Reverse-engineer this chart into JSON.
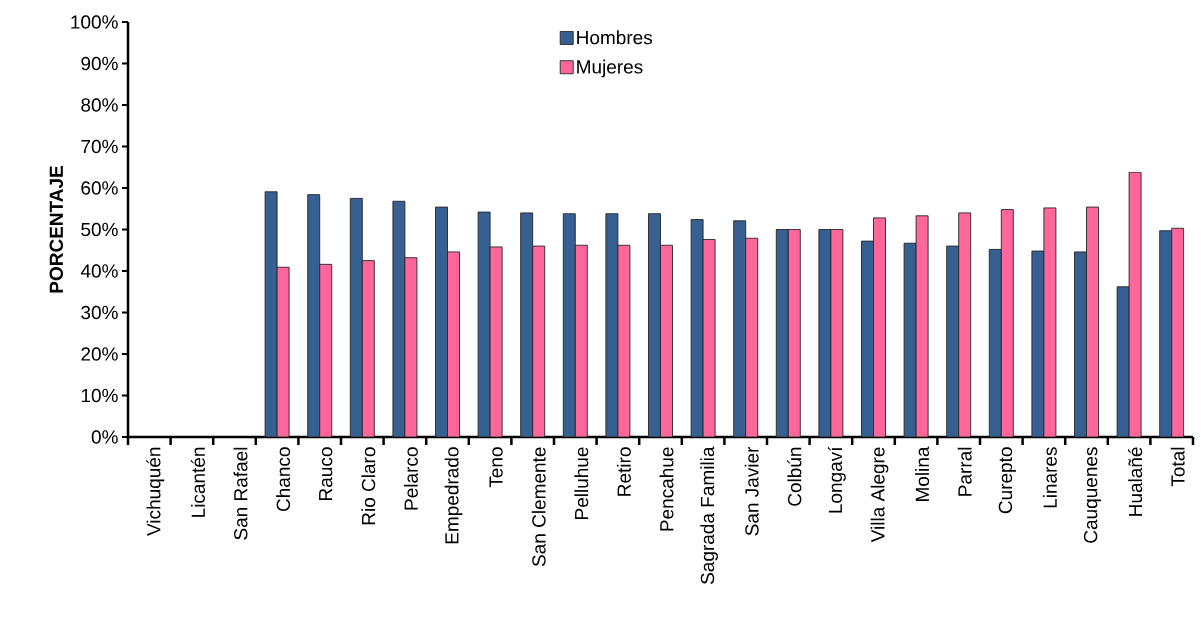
{
  "chart_data": {
    "type": "bar",
    "ylabel": "PORCENTAJE",
    "categories": [
      "Vichuquén",
      "Licantén",
      "San Rafael",
      "Chanco",
      "Rauco",
      "Rio Claro",
      "Pelarco",
      "Empedrado",
      "Teno",
      "San Clemente",
      "Pelluhue",
      "Retiro",
      "Pencahue",
      "Sagrada Familia",
      "San Javier",
      "Colbún",
      "Longaví",
      "Villa Alegre",
      "Molina",
      "Parral",
      "Curepto",
      "Linares",
      "Cauquenes",
      "Hualañé",
      "Total"
    ],
    "series": [
      {
        "name": "Hombres",
        "color": "#376092",
        "values": [
          null,
          null,
          null,
          59.1,
          58.4,
          57.5,
          56.8,
          55.4,
          54.2,
          54.0,
          53.8,
          53.8,
          53.8,
          52.4,
          52.1,
          50.0,
          50.0,
          47.2,
          46.7,
          46.0,
          45.2,
          44.8,
          44.6,
          36.2,
          49.7
        ]
      },
      {
        "name": "Mujeres",
        "color": "#ff6699",
        "values": [
          null,
          null,
          null,
          40.9,
          41.6,
          42.5,
          43.2,
          44.6,
          45.8,
          46.0,
          46.2,
          46.2,
          46.2,
          47.6,
          47.9,
          50.0,
          50.0,
          52.8,
          53.3,
          54.0,
          54.8,
          55.2,
          55.4,
          63.8,
          50.3
        ]
      }
    ],
    "ylim": [
      0,
      100
    ],
    "yticks": [
      {
        "value": 0,
        "label": "0%"
      },
      {
        "value": 10,
        "label": "10%"
      },
      {
        "value": 20,
        "label": "20%"
      },
      {
        "value": 30,
        "label": "30%"
      },
      {
        "value": 40,
        "label": "40%"
      },
      {
        "value": 50,
        "label": "50%"
      },
      {
        "value": 60,
        "label": "60%"
      },
      {
        "value": 70,
        "label": "70%"
      },
      {
        "value": 80,
        "label": "80%"
      },
      {
        "value": 90,
        "label": "90%"
      },
      {
        "value": 100,
        "label": "100%"
      }
    ],
    "legend": "top"
  }
}
